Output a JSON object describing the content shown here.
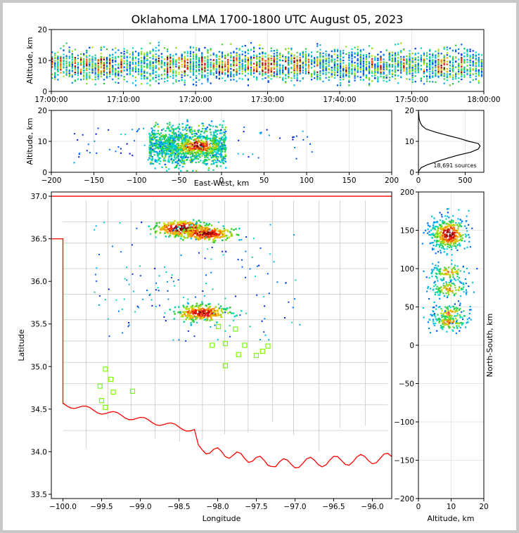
{
  "chart_data": [
    {
      "id": "time-height",
      "type": "heatmap",
      "title": "Oklahoma LMA 1700-1800 UTC August 05, 2023",
      "ylabel": "Altitude, km",
      "ylim": [
        0,
        20
      ],
      "yticks": [
        "0",
        "10",
        "20"
      ],
      "xticks": [
        "17:00:00",
        "17:10:00",
        "17:20:00",
        "17:30:00",
        "17:40:00",
        "17:50:00",
        "18:00:00"
      ],
      "source_altitude_band_km": [
        2,
        16
      ],
      "densest_altitude_km": [
        6,
        11
      ]
    },
    {
      "id": "east-west-altitude",
      "type": "heatmap",
      "xlabel": "East-West, km",
      "ylabel": "Altitude, km",
      "xlim": [
        -200,
        200
      ],
      "ylim": [
        0,
        20
      ],
      "xticks": [
        "−200",
        "−150",
        "−100",
        "−50",
        "0",
        "50",
        "100",
        "150",
        "200"
      ],
      "yticks": [
        "0",
        "10",
        "20"
      ],
      "core_x_km": [
        -85,
        5
      ],
      "peak_x_km": [
        -45,
        -10
      ],
      "peak_altitude_km": [
        6,
        11
      ]
    },
    {
      "id": "altitude-histogram",
      "type": "line",
      "xlim": [
        0,
        700
      ],
      "ylim": [
        0,
        20
      ],
      "xticks": [
        "0",
        "500"
      ],
      "yticks": [
        "0",
        "10",
        "20"
      ],
      "annotation": "18,691 sources",
      "x": [
        0,
        5,
        30,
        100,
        250,
        420,
        560,
        640,
        660,
        640,
        540,
        430,
        300,
        180,
        80,
        40,
        20,
        10,
        5,
        0
      ],
      "y": [
        0,
        0.5,
        1.5,
        2.5,
        4,
        5.5,
        6.5,
        7.5,
        8.5,
        9.3,
        10,
        11,
        12,
        13,
        14,
        15,
        16,
        17,
        18,
        20
      ]
    },
    {
      "id": "plan-view",
      "type": "heatmap",
      "xlabel": "Longitude",
      "ylabel": "Latitude",
      "xlim": [
        -100.15,
        -95.75
      ],
      "ylim": [
        33.45,
        37.05
      ],
      "xticks": [
        "−100.0",
        "−99.5",
        "−99.0",
        "−98.5",
        "−98.0",
        "−97.5",
        "−97.0",
        "−96.5",
        "−96.0"
      ],
      "yticks": [
        "33.5",
        "34.0",
        "34.5",
        "35.0",
        "35.5",
        "36.0",
        "36.5",
        "37.0"
      ],
      "storm_cores": [
        {
          "lon": -98.45,
          "lat": 36.62,
          "intensity": 1.0
        },
        {
          "lon": -98.15,
          "lat": 36.56,
          "intensity": 0.9
        },
        {
          "lon": -98.2,
          "lat": 35.63,
          "intensity": 0.85
        }
      ],
      "stations": [
        [
          -99.45,
          34.97
        ],
        [
          -99.38,
          34.85
        ],
        [
          -99.52,
          34.77
        ],
        [
          -99.35,
          34.7
        ],
        [
          -99.1,
          34.71
        ],
        [
          -99.5,
          34.6
        ],
        [
          -99.45,
          34.52
        ],
        [
          -97.99,
          35.47
        ],
        [
          -97.77,
          35.44
        ],
        [
          -98.07,
          35.25
        ],
        [
          -97.9,
          35.27
        ],
        [
          -97.65,
          35.25
        ],
        [
          -97.35,
          35.24
        ],
        [
          -97.42,
          35.18
        ],
        [
          -97.73,
          35.14
        ],
        [
          -97.5,
          35.13
        ],
        [
          -97.9,
          35.01
        ]
      ],
      "colors": {
        "border": "#ff0000",
        "counties": "#c8c8c8",
        "stations": "#7cfc00"
      }
    },
    {
      "id": "altitude-north-south",
      "type": "heatmap",
      "xlabel": "Altitude, km",
      "ylabel": "North-South, km",
      "xlim": [
        0,
        20
      ],
      "ylim": [
        -200,
        200
      ],
      "xticks": [
        "0",
        "10",
        "20"
      ],
      "yticks": [
        "−200",
        "−150",
        "−100",
        "−50",
        "0",
        "50",
        "100",
        "150",
        "200"
      ],
      "clusters_ns_km": [
        145,
        95,
        73,
        42,
        30
      ]
    }
  ]
}
